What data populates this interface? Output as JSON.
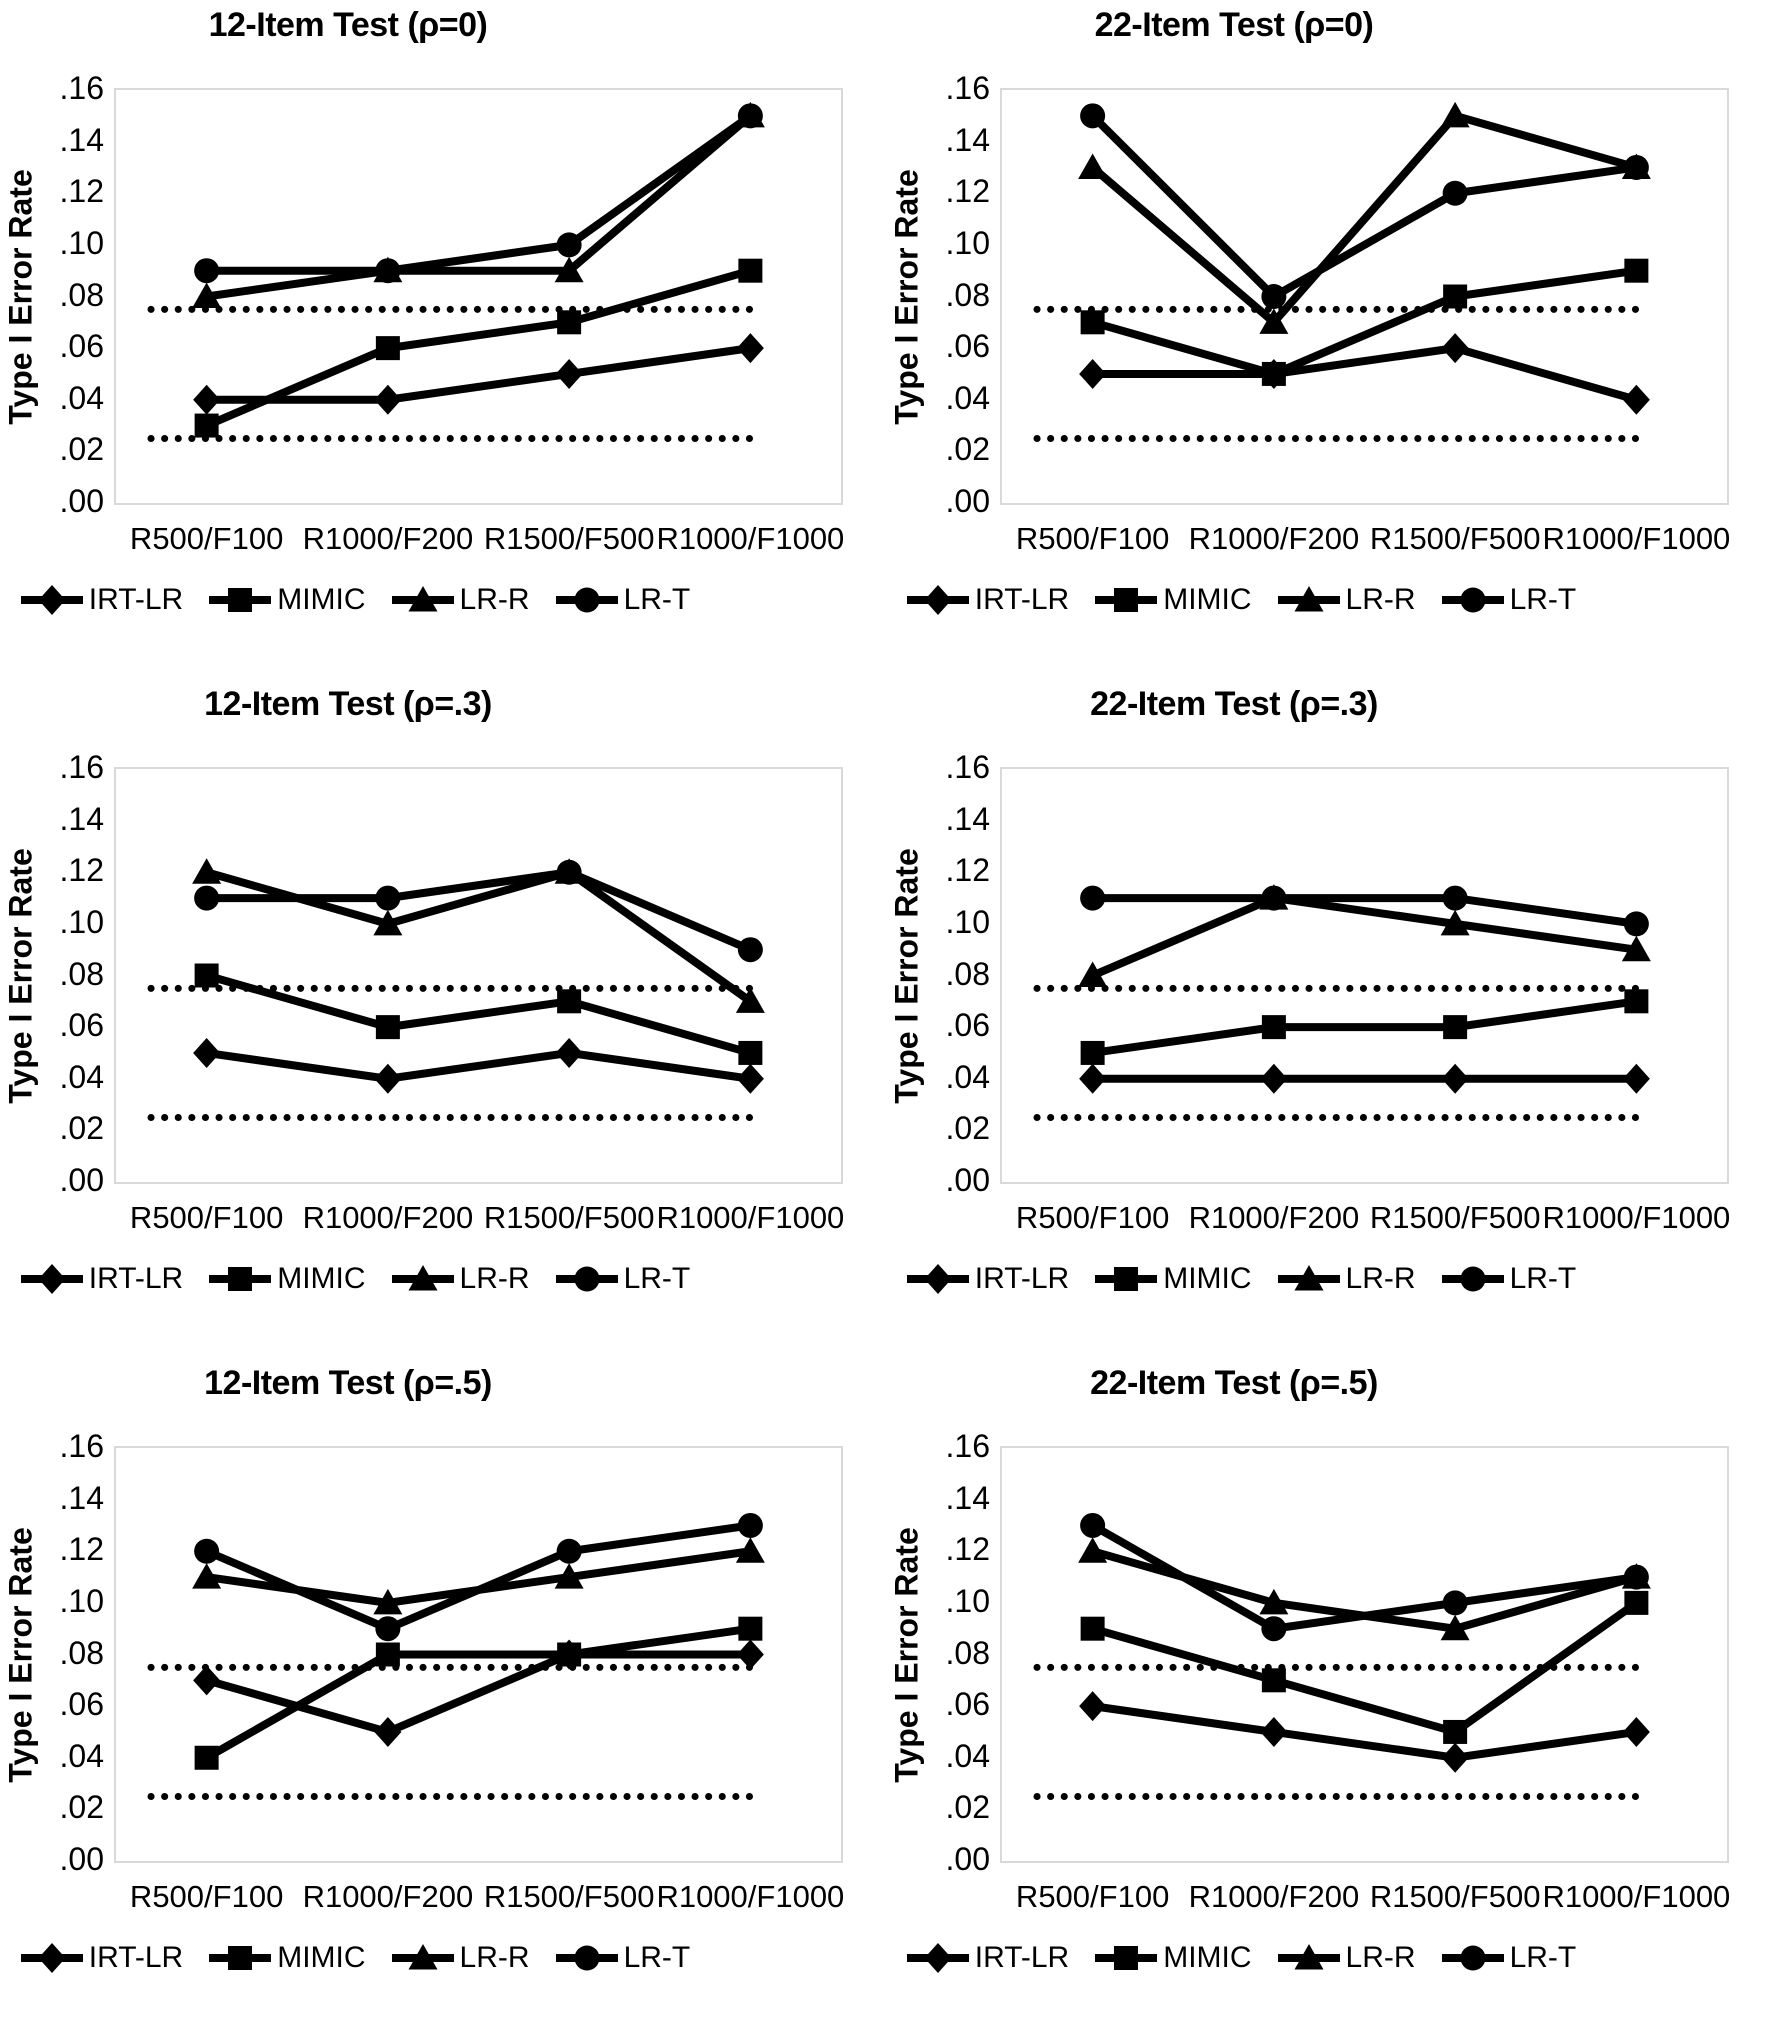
{
  "figure": {
    "y_axis": {
      "title": "Type I Error Rate",
      "ticks": [
        ".16",
        ".14",
        ".12",
        ".10",
        ".08",
        ".06",
        ".04",
        ".02",
        ".00"
      ],
      "max": 0.16
    },
    "categories": [
      "R500/F100",
      "R1000/F200",
      "R1500/F500",
      "R1000/F1000"
    ],
    "legend": [
      {
        "label": "IRT-LR",
        "marker": "diamond"
      },
      {
        "label": "MIMIC",
        "marker": "square"
      },
      {
        "label": "LR-R",
        "marker": "triangle"
      },
      {
        "label": "LR-T",
        "marker": "circle"
      }
    ],
    "reference_lines": [
      0.075,
      0.025
    ],
    "colors": {
      "series": "#000000",
      "reference": "#000000",
      "plot_border": "#d9d9d9",
      "background": "#ffffff",
      "text": "#000000"
    }
  },
  "chart_data": [
    {
      "type": "line",
      "title": "12-Item Test (ρ=0)",
      "ylabel": "Type I Error Rate",
      "ylim": [
        0,
        0.16
      ],
      "categories": [
        "R500/F100",
        "R1000/F200",
        "R1500/F500",
        "R1000/F1000"
      ],
      "reference_lines": [
        0.075,
        0.025
      ],
      "series": [
        {
          "name": "IRT-LR",
          "marker": "diamond",
          "values": [
            0.04,
            0.04,
            0.05,
            0.06
          ]
        },
        {
          "name": "MIMIC",
          "marker": "square",
          "values": [
            0.03,
            0.06,
            0.07,
            0.09
          ]
        },
        {
          "name": "LR-R",
          "marker": "triangle",
          "values": [
            0.08,
            0.09,
            0.09,
            0.15
          ]
        },
        {
          "name": "LR-T",
          "marker": "circle",
          "values": [
            0.09,
            0.09,
            0.1,
            0.15
          ]
        }
      ]
    },
    {
      "type": "line",
      "title": "22-Item Test (ρ=0)",
      "ylabel": "Type I Error Rate",
      "ylim": [
        0,
        0.16
      ],
      "categories": [
        "R500/F100",
        "R1000/F200",
        "R1500/F500",
        "R1000/F1000"
      ],
      "reference_lines": [
        0.075,
        0.025
      ],
      "series": [
        {
          "name": "IRT-LR",
          "marker": "diamond",
          "values": [
            0.05,
            0.05,
            0.06,
            0.04
          ]
        },
        {
          "name": "MIMIC",
          "marker": "square",
          "values": [
            0.07,
            0.05,
            0.08,
            0.09
          ]
        },
        {
          "name": "LR-R",
          "marker": "triangle",
          "values": [
            0.13,
            0.07,
            0.15,
            0.13
          ]
        },
        {
          "name": "LR-T",
          "marker": "circle",
          "values": [
            0.15,
            0.08,
            0.12,
            0.13
          ]
        }
      ]
    },
    {
      "type": "line",
      "title": "12-Item Test (ρ=.3)",
      "ylabel": "Type I Error Rate",
      "ylim": [
        0,
        0.16
      ],
      "categories": [
        "R500/F100",
        "R1000/F200",
        "R1500/F500",
        "R1000/F1000"
      ],
      "reference_lines": [
        0.075,
        0.025
      ],
      "series": [
        {
          "name": "IRT-LR",
          "marker": "diamond",
          "values": [
            0.05,
            0.04,
            0.05,
            0.04
          ]
        },
        {
          "name": "MIMIC",
          "marker": "square",
          "values": [
            0.08,
            0.06,
            0.07,
            0.05
          ]
        },
        {
          "name": "LR-R",
          "marker": "triangle",
          "values": [
            0.12,
            0.1,
            0.12,
            0.07
          ]
        },
        {
          "name": "LR-T",
          "marker": "circle",
          "values": [
            0.11,
            0.11,
            0.12,
            0.09
          ]
        }
      ]
    },
    {
      "type": "line",
      "title": "22-Item Test (ρ=.3)",
      "ylabel": "Type I Error Rate",
      "ylim": [
        0,
        0.16
      ],
      "categories": [
        "R500/F100",
        "R1000/F200",
        "R1500/F500",
        "R1000/F1000"
      ],
      "reference_lines": [
        0.075,
        0.025
      ],
      "series": [
        {
          "name": "IRT-LR",
          "marker": "diamond",
          "values": [
            0.04,
            0.04,
            0.04,
            0.04
          ]
        },
        {
          "name": "MIMIC",
          "marker": "square",
          "values": [
            0.05,
            0.06,
            0.06,
            0.07
          ]
        },
        {
          "name": "LR-R",
          "marker": "triangle",
          "values": [
            0.08,
            0.11,
            0.1,
            0.09
          ]
        },
        {
          "name": "LR-T",
          "marker": "circle",
          "values": [
            0.11,
            0.11,
            0.11,
            0.1
          ]
        }
      ]
    },
    {
      "type": "line",
      "title": "12-Item Test (ρ=.5)",
      "ylabel": "Type I Error Rate",
      "ylim": [
        0,
        0.16
      ],
      "categories": [
        "R500/F100",
        "R1000/F200",
        "R1500/F500",
        "R1000/F1000"
      ],
      "reference_lines": [
        0.075,
        0.025
      ],
      "series": [
        {
          "name": "IRT-LR",
          "marker": "diamond",
          "values": [
            0.07,
            0.05,
            0.08,
            0.08
          ]
        },
        {
          "name": "MIMIC",
          "marker": "square",
          "values": [
            0.04,
            0.08,
            0.08,
            0.09
          ]
        },
        {
          "name": "LR-R",
          "marker": "triangle",
          "values": [
            0.11,
            0.1,
            0.11,
            0.12
          ]
        },
        {
          "name": "LR-T",
          "marker": "circle",
          "values": [
            0.12,
            0.09,
            0.12,
            0.13
          ]
        }
      ]
    },
    {
      "type": "line",
      "title": "22-Item Test (ρ=.5)",
      "ylabel": "Type I Error Rate",
      "ylim": [
        0,
        0.16
      ],
      "categories": [
        "R500/F100",
        "R1000/F200",
        "R1500/F500",
        "R1000/F1000"
      ],
      "reference_lines": [
        0.075,
        0.025
      ],
      "series": [
        {
          "name": "IRT-LR",
          "marker": "diamond",
          "values": [
            0.06,
            0.05,
            0.04,
            0.05
          ]
        },
        {
          "name": "MIMIC",
          "marker": "square",
          "values": [
            0.09,
            0.07,
            0.05,
            0.1
          ]
        },
        {
          "name": "LR-R",
          "marker": "triangle",
          "values": [
            0.12,
            0.1,
            0.09,
            0.11
          ]
        },
        {
          "name": "LR-T",
          "marker": "circle",
          "values": [
            0.13,
            0.09,
            0.1,
            0.11
          ]
        }
      ]
    }
  ]
}
